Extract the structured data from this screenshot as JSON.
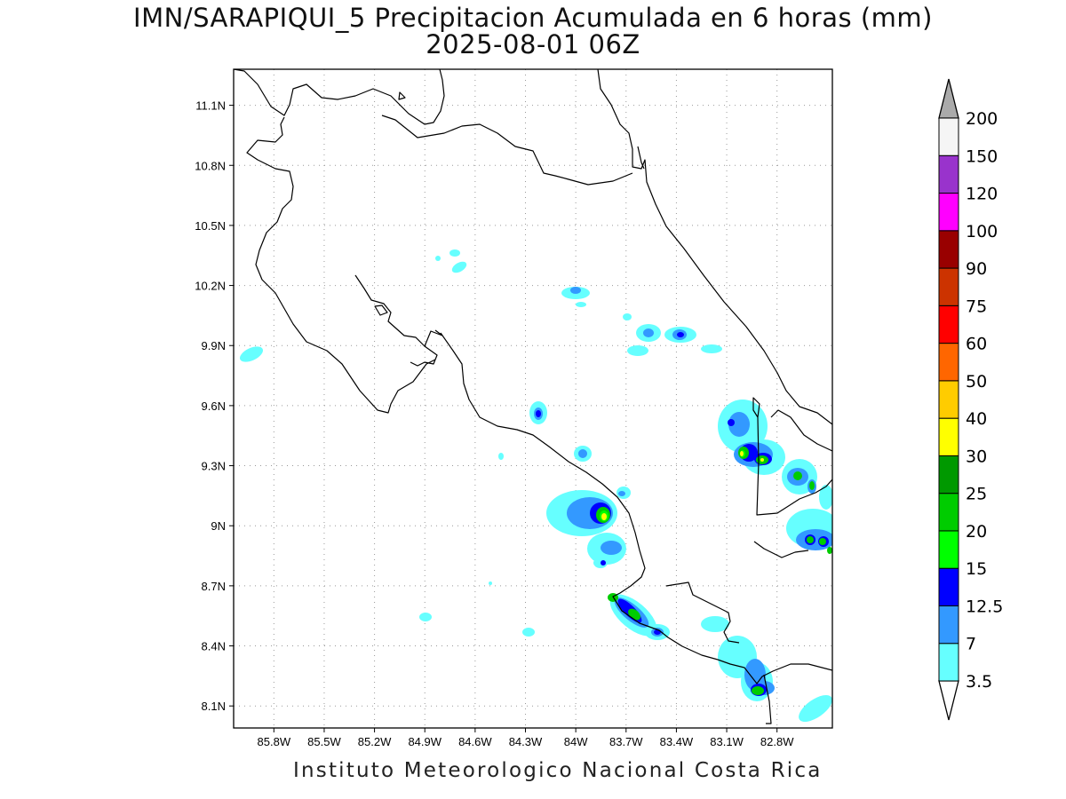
{
  "title": {
    "line1": "IMN/SARAPIQUI_5 Precipitacion Acumulada en 6 horas (mm)",
    "line2": "2025-08-01 06Z"
  },
  "footer": "Instituto Meteorologico Nacional Costa Rica",
  "map": {
    "lon_range": [
      -86.04,
      -82.47
    ],
    "lat_range": [
      7.99,
      11.28
    ],
    "y_ticks": [
      "11.1N",
      "10.8N",
      "10.5N",
      "10.2N",
      "9.9N",
      "9.6N",
      "9.3N",
      "9N",
      "8.7N",
      "8.4N",
      "8.1N"
    ],
    "x_ticks": [
      "85.8W",
      "85.5W",
      "85.2W",
      "84.9W",
      "84.6W",
      "84.3W",
      "84W",
      "83.7W",
      "83.4W",
      "83.1W",
      "82.8W"
    ],
    "grid": "dotted"
  },
  "colorbar": {
    "levels": [
      "3.5",
      "7",
      "12.5",
      "15",
      "20",
      "25",
      "30",
      "40",
      "50",
      "60",
      "75",
      "90",
      "100",
      "120",
      "150",
      "200"
    ],
    "colors": [
      "#66ffff",
      "#3399ff",
      "#0000ff",
      "#00ff00",
      "#00cc00",
      "#009900",
      "#ffff00",
      "#ffcc00",
      "#ff6600",
      "#ff0000",
      "#cc3300",
      "#990000",
      "#ff00ff",
      "#9933cc",
      "#f5f5f5"
    ],
    "over_color": "#aaaaaa",
    "under_color": "#ffffff"
  }
}
